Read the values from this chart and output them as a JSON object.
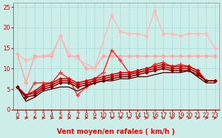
{
  "xlabel": "Vent moyen/en rafales ( km/h )",
  "bg_color": "#cceee8",
  "grid_color": "#aadddd",
  "xlim": [
    -0.5,
    23.5
  ],
  "ylim": [
    0,
    26
  ],
  "yticks": [
    0,
    5,
    10,
    15,
    20,
    25
  ],
  "xticks": [
    0,
    1,
    2,
    3,
    4,
    5,
    6,
    7,
    8,
    9,
    10,
    11,
    12,
    13,
    14,
    15,
    16,
    17,
    18,
    19,
    20,
    21,
    22,
    23
  ],
  "series": [
    {
      "x": [
        0,
        1,
        2,
        3,
        4,
        5,
        6,
        7,
        8,
        9,
        10,
        11,
        12,
        13,
        14,
        15,
        16,
        17,
        18,
        19,
        20,
        21,
        22,
        23
      ],
      "y": [
        13.5,
        6.5,
        13.0,
        13.0,
        13.0,
        18.0,
        13.0,
        13.0,
        10.0,
        10.0,
        13.0,
        13.0,
        13.0,
        13.0,
        13.0,
        13.0,
        13.0,
        13.0,
        13.0,
        13.0,
        13.0,
        13.0,
        13.0,
        13.0
      ],
      "color": "#ffaaaa",
      "lw": 1.2,
      "marker": "D",
      "ms": 2.5,
      "connected": true
    },
    {
      "x": [
        0,
        1,
        4,
        5,
        6,
        9,
        11,
        12,
        13,
        14,
        15,
        16,
        17,
        18,
        19,
        20,
        21,
        22,
        23
      ],
      "y": [
        13.5,
        12.0,
        13.5,
        18.0,
        13.5,
        10.0,
        23.0,
        19.0,
        18.5,
        18.5,
        18.0,
        24.0,
        18.5,
        18.5,
        18.0,
        18.5,
        18.5,
        18.5,
        15.0
      ],
      "color": "#ffbbbb",
      "lw": 1.2,
      "marker": "D",
      "ms": 2.5,
      "connected": false
    },
    {
      "x": [
        0,
        1,
        2,
        3,
        4,
        5,
        6,
        7,
        8,
        9,
        10,
        11,
        12,
        13,
        14,
        15,
        16,
        17,
        18,
        19,
        20,
        21,
        22,
        23
      ],
      "y": [
        5.5,
        3.0,
        6.5,
        6.5,
        6.5,
        9.0,
        7.5,
        3.5,
        5.5,
        7.5,
        9.0,
        14.5,
        12.0,
        9.0,
        9.0,
        9.5,
        11.0,
        11.5,
        10.5,
        11.0,
        10.5,
        9.5,
        7.0,
        7.0
      ],
      "color": "#ff3333",
      "lw": 1.2,
      "marker": "+",
      "ms": 4,
      "connected": true
    },
    {
      "x": [
        0,
        1,
        2,
        3,
        4,
        5,
        6,
        7,
        8,
        9,
        10,
        11,
        12,
        13,
        14,
        15,
        16,
        17,
        18,
        19,
        20,
        21,
        22,
        23
      ],
      "y": [
        5.5,
        3.5,
        4.5,
        6.0,
        6.5,
        7.5,
        7.5,
        6.5,
        7.0,
        7.5,
        8.0,
        8.5,
        9.0,
        9.0,
        9.5,
        10.0,
        10.5,
        11.0,
        10.5,
        10.5,
        10.5,
        9.5,
        7.0,
        7.0
      ],
      "color": "#dd0000",
      "lw": 1.2,
      "marker": "D",
      "ms": 2,
      "connected": true
    },
    {
      "x": [
        0,
        1,
        2,
        3,
        4,
        5,
        6,
        7,
        8,
        9,
        10,
        11,
        12,
        13,
        14,
        15,
        16,
        17,
        18,
        19,
        20,
        21,
        22,
        23
      ],
      "y": [
        5.5,
        3.5,
        4.0,
        5.5,
        6.0,
        7.0,
        7.0,
        6.0,
        6.5,
        7.0,
        7.5,
        8.0,
        8.5,
        8.5,
        9.0,
        9.5,
        10.0,
        10.5,
        10.0,
        10.0,
        10.0,
        9.0,
        7.0,
        7.0
      ],
      "color": "#bb0000",
      "lw": 1.2,
      "marker": "D",
      "ms": 2,
      "connected": true
    },
    {
      "x": [
        0,
        1,
        2,
        3,
        4,
        5,
        6,
        7,
        8,
        9,
        10,
        11,
        12,
        13,
        14,
        15,
        16,
        17,
        18,
        19,
        20,
        21,
        22,
        23
      ],
      "y": [
        5.5,
        3.0,
        3.5,
        5.0,
        5.5,
        6.5,
        6.5,
        5.5,
        6.0,
        6.5,
        7.0,
        7.5,
        8.0,
        8.0,
        8.5,
        9.0,
        9.5,
        10.0,
        9.5,
        9.5,
        9.5,
        8.5,
        7.0,
        7.0
      ],
      "color": "#880000",
      "lw": 1.2,
      "marker": "D",
      "ms": 2,
      "connected": true
    },
    {
      "x": [
        0,
        1,
        2,
        3,
        4,
        5,
        6,
        7,
        8,
        9,
        10,
        11,
        12,
        13,
        14,
        15,
        16,
        17,
        18,
        19,
        20,
        21,
        22,
        23
      ],
      "y": [
        5.5,
        2.0,
        3.0,
        4.5,
        5.0,
        5.5,
        5.5,
        4.5,
        5.5,
        6.5,
        7.0,
        7.0,
        7.5,
        7.5,
        8.0,
        8.0,
        8.5,
        9.0,
        9.0,
        9.0,
        9.5,
        8.0,
        6.5,
        6.5
      ],
      "color": "#550000",
      "lw": 1.0,
      "marker": null,
      "ms": 0,
      "connected": true
    }
  ],
  "xlabel_fontsize": 7,
  "tick_fontsize": 6
}
